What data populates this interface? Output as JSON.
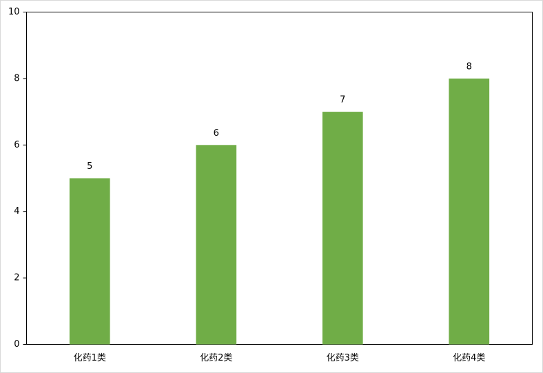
{
  "chart_data": {
    "type": "bar",
    "categories": [
      "化药1类",
      "化药2类",
      "化药3类",
      "化药4类"
    ],
    "values": [
      5,
      6,
      7,
      8
    ],
    "color": "#70ad47",
    "ylim": [
      0,
      10
    ],
    "yticks": [
      0,
      2,
      4,
      6,
      8,
      10
    ],
    "grid": false,
    "data_labels": true
  }
}
